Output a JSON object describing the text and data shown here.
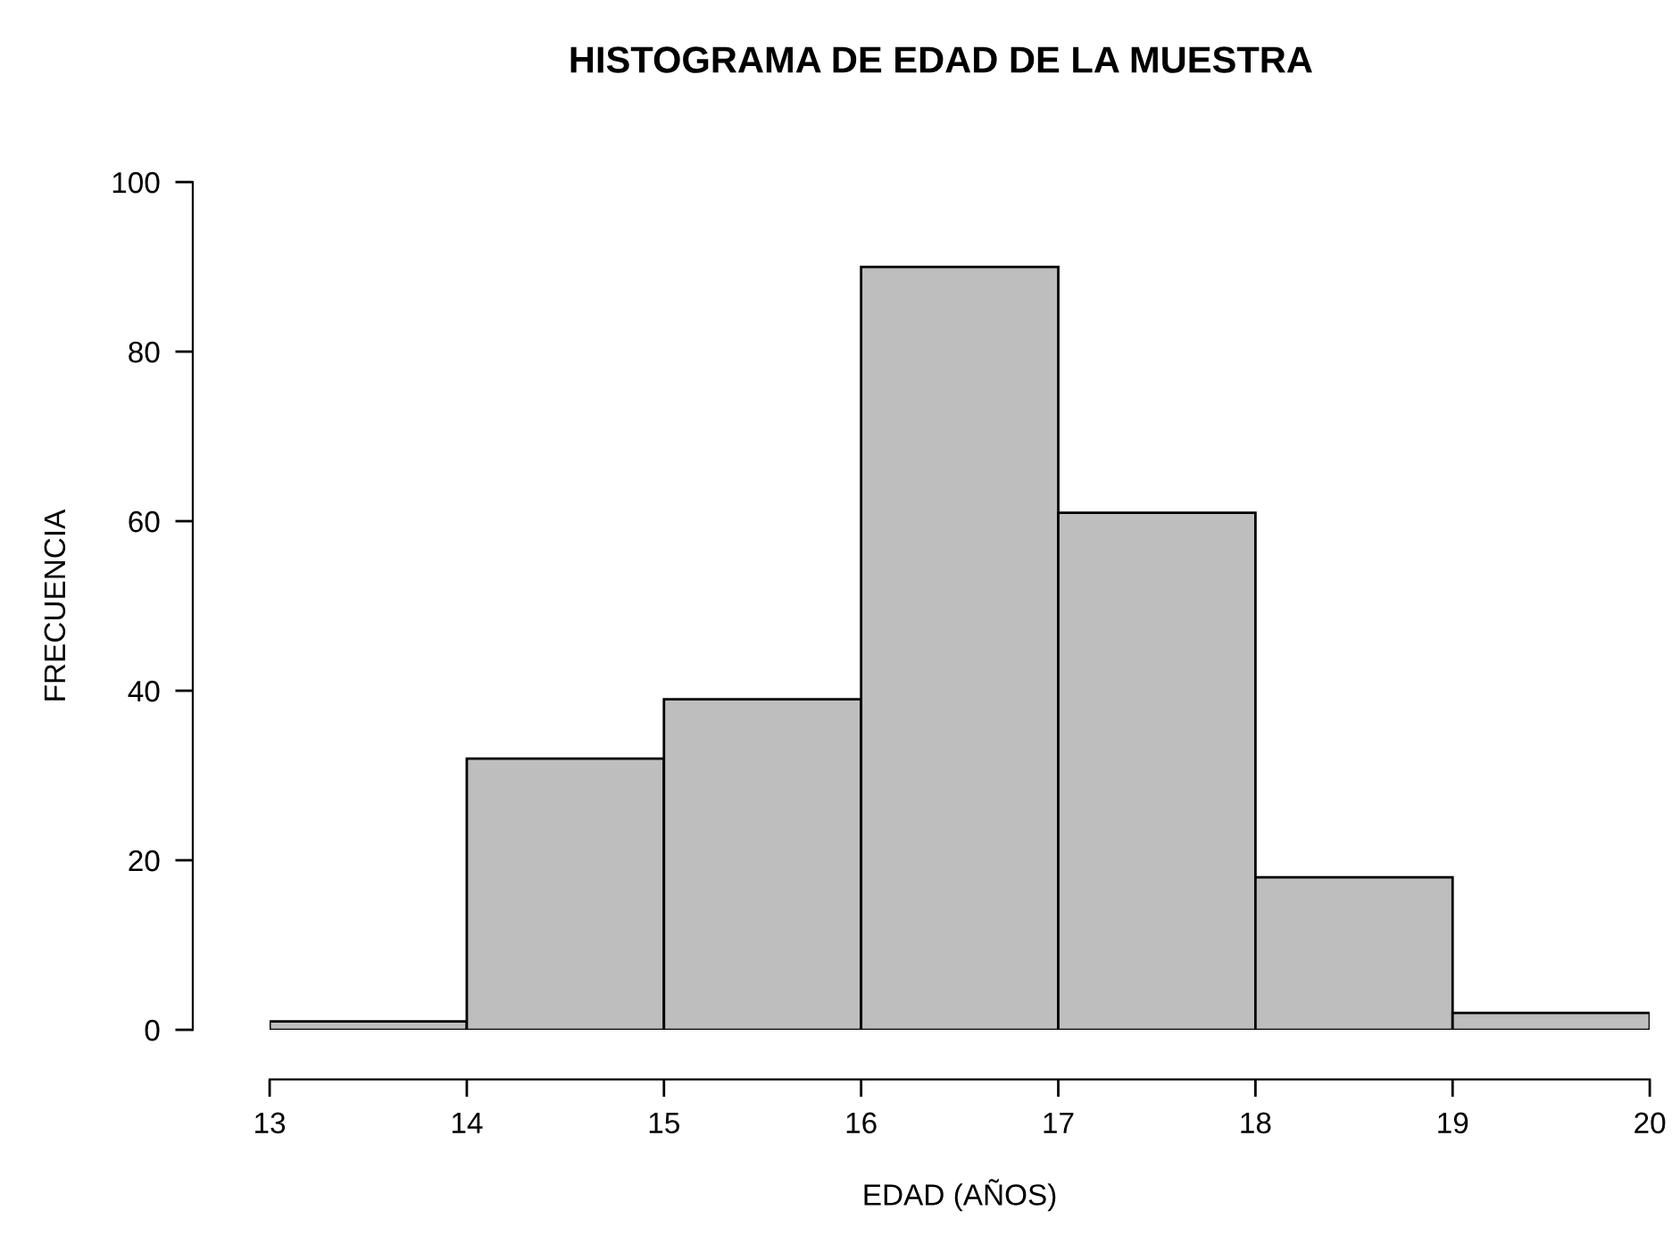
{
  "chart_data": {
    "type": "histogram",
    "title": "HISTOGRAMA DE EDAD DE LA MUESTRA",
    "xlabel": "EDAD (AÑOS)",
    "ylabel": "FRECUENCIA",
    "bins": [
      13,
      14,
      15,
      16,
      17,
      18,
      19,
      20
    ],
    "values": [
      1,
      32,
      39,
      90,
      61,
      18,
      2
    ],
    "color": "#bebebe",
    "xlim": [
      13,
      20
    ],
    "xticks": [
      13,
      14,
      15,
      16,
      17,
      18,
      19,
      20
    ],
    "ylim": [
      0,
      100
    ],
    "yticks": [
      0,
      20,
      40,
      60,
      80,
      100
    ],
    "grid": false,
    "legend": false
  }
}
